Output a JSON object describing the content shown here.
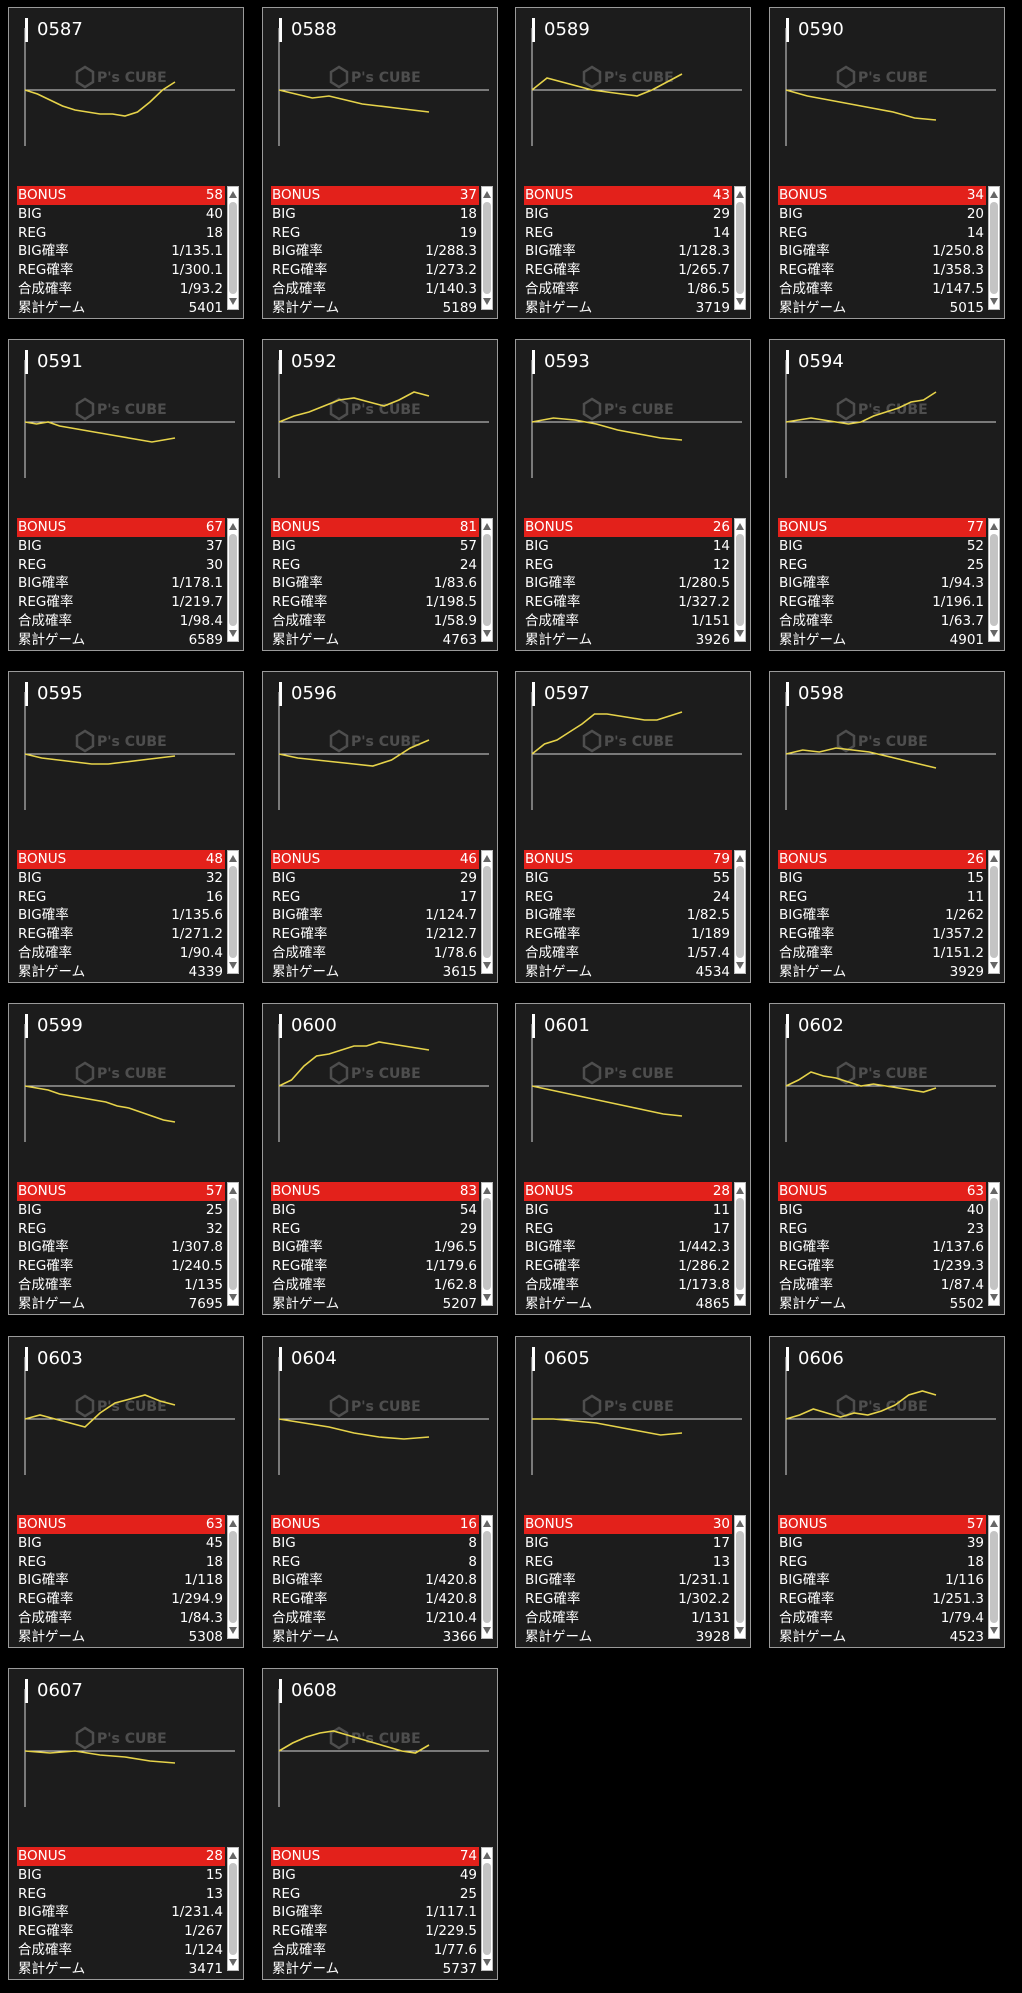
{
  "labels": {
    "bonus": "BONUS",
    "big": "BIG",
    "reg": "REG",
    "big_rate": "BIG確率",
    "reg_rate": "REG確率",
    "combined_rate": "合成確率",
    "total_games": "累計ゲーム"
  },
  "watermark": "P's CUBE",
  "colors": {
    "graph_line": "#e6d34a",
    "bonus_bar": "#e3211b",
    "card_bg": "#1c1c1c"
  },
  "machines": [
    {
      "id": "0587",
      "bonus": "58",
      "big": "40",
      "reg": "18",
      "big_rate": "1/135.1",
      "reg_rate": "1/300.1",
      "combined_rate": "1/93.2",
      "games": "5401"
    },
    {
      "id": "0588",
      "bonus": "37",
      "big": "18",
      "reg": "19",
      "big_rate": "1/288.3",
      "reg_rate": "1/273.2",
      "combined_rate": "1/140.3",
      "games": "5189"
    },
    {
      "id": "0589",
      "bonus": "43",
      "big": "29",
      "reg": "14",
      "big_rate": "1/128.3",
      "reg_rate": "1/265.7",
      "combined_rate": "1/86.5",
      "games": "3719"
    },
    {
      "id": "0590",
      "bonus": "34",
      "big": "20",
      "reg": "14",
      "big_rate": "1/250.8",
      "reg_rate": "1/358.3",
      "combined_rate": "1/147.5",
      "games": "5015"
    },
    {
      "id": "0591",
      "bonus": "67",
      "big": "37",
      "reg": "30",
      "big_rate": "1/178.1",
      "reg_rate": "1/219.7",
      "combined_rate": "1/98.4",
      "games": "6589"
    },
    {
      "id": "0592",
      "bonus": "81",
      "big": "57",
      "reg": "24",
      "big_rate": "1/83.6",
      "reg_rate": "1/198.5",
      "combined_rate": "1/58.9",
      "games": "4763"
    },
    {
      "id": "0593",
      "bonus": "26",
      "big": "14",
      "reg": "12",
      "big_rate": "1/280.5",
      "reg_rate": "1/327.2",
      "combined_rate": "1/151",
      "games": "3926"
    },
    {
      "id": "0594",
      "bonus": "77",
      "big": "52",
      "reg": "25",
      "big_rate": "1/94.3",
      "reg_rate": "1/196.1",
      "combined_rate": "1/63.7",
      "games": "4901"
    },
    {
      "id": "0595",
      "bonus": "48",
      "big": "32",
      "reg": "16",
      "big_rate": "1/135.6",
      "reg_rate": "1/271.2",
      "combined_rate": "1/90.4",
      "games": "4339"
    },
    {
      "id": "0596",
      "bonus": "46",
      "big": "29",
      "reg": "17",
      "big_rate": "1/124.7",
      "reg_rate": "1/212.7",
      "combined_rate": "1/78.6",
      "games": "3615"
    },
    {
      "id": "0597",
      "bonus": "79",
      "big": "55",
      "reg": "24",
      "big_rate": "1/82.5",
      "reg_rate": "1/189",
      "combined_rate": "1/57.4",
      "games": "4534"
    },
    {
      "id": "0598",
      "bonus": "26",
      "big": "15",
      "reg": "11",
      "big_rate": "1/262",
      "reg_rate": "1/357.2",
      "combined_rate": "1/151.2",
      "games": "3929"
    },
    {
      "id": "0599",
      "bonus": "57",
      "big": "25",
      "reg": "32",
      "big_rate": "1/307.8",
      "reg_rate": "1/240.5",
      "combined_rate": "1/135",
      "games": "7695"
    },
    {
      "id": "0600",
      "bonus": "83",
      "big": "54",
      "reg": "29",
      "big_rate": "1/96.5",
      "reg_rate": "1/179.6",
      "combined_rate": "1/62.8",
      "games": "5207"
    },
    {
      "id": "0601",
      "bonus": "28",
      "big": "11",
      "reg": "17",
      "big_rate": "1/442.3",
      "reg_rate": "1/286.2",
      "combined_rate": "1/173.8",
      "games": "4865"
    },
    {
      "id": "0602",
      "bonus": "63",
      "big": "40",
      "reg": "23",
      "big_rate": "1/137.6",
      "reg_rate": "1/239.3",
      "combined_rate": "1/87.4",
      "games": "5502"
    },
    {
      "id": "0603",
      "bonus": "63",
      "big": "45",
      "reg": "18",
      "big_rate": "1/118",
      "reg_rate": "1/294.9",
      "combined_rate": "1/84.3",
      "games": "5308"
    },
    {
      "id": "0604",
      "bonus": "16",
      "big": "8",
      "reg": "8",
      "big_rate": "1/420.8",
      "reg_rate": "1/420.8",
      "combined_rate": "1/210.4",
      "games": "3366"
    },
    {
      "id": "0605",
      "bonus": "30",
      "big": "17",
      "reg": "13",
      "big_rate": "1/231.1",
      "reg_rate": "1/302.2",
      "combined_rate": "1/131",
      "games": "3928"
    },
    {
      "id": "0606",
      "bonus": "57",
      "big": "39",
      "reg": "18",
      "big_rate": "1/116",
      "reg_rate": "1/251.3",
      "combined_rate": "1/79.4",
      "games": "4523"
    },
    {
      "id": "0607",
      "bonus": "28",
      "big": "15",
      "reg": "13",
      "big_rate": "1/231.4",
      "reg_rate": "1/267",
      "combined_rate": "1/124",
      "games": "3471"
    },
    {
      "id": "0608",
      "bonus": "74",
      "big": "49",
      "reg": "25",
      "big_rate": "1/117.1",
      "reg_rate": "1/229.5",
      "combined_rate": "1/77.6",
      "games": "5737"
    }
  ]
}
